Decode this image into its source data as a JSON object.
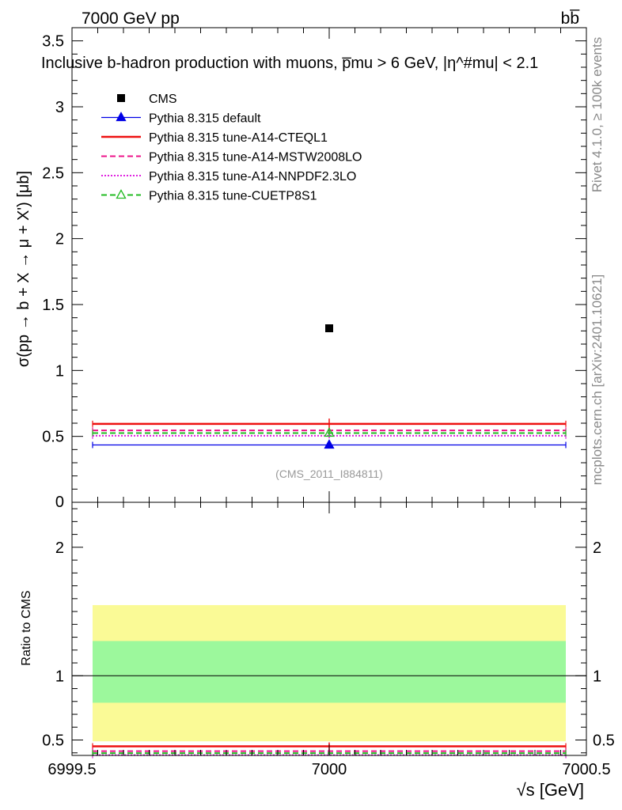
{
  "chart_data": {
    "type": "scatter",
    "header_left": "7000 GeV pp",
    "header_right": "bb̅",
    "title": "Inclusive b-hadron production with muons, p̅mu > 6 GeV, |η^#mu| < 2.1",
    "ylabel": "σ(pp → b + X → μ + X') [μb]",
    "xlabel": "√s [GeV]",
    "ratio_ylabel": "Ratio to CMS",
    "analysis_tag": "(CMS_2011_I884811)",
    "side_text_top": "Rivet 4.1.0, ≥ 100k events",
    "side_text_bottom": "mcplots.cern.ch [arXiv:2401.10621]",
    "xlim": [
      6999.5,
      7000.5
    ],
    "xticks": [
      6999.5,
      7000,
      7000.5
    ],
    "xtick_labels": [
      "6999.5",
      "7000",
      "7000.5"
    ],
    "ylim": [
      0,
      3.6
    ],
    "yticks": [
      0.5,
      1,
      1.5,
      2,
      2.5,
      3,
      3.5
    ],
    "ytick_labels": [
      "0.5",
      "1",
      "1.5",
      "2",
      "2.5",
      "3",
      "3.5"
    ],
    "ratio_ylim": [
      0.38,
      2.35
    ],
    "ratio_yticks": [
      0.5,
      1,
      2
    ],
    "ratio_ytick_labels": [
      "0.5",
      "1",
      "2"
    ],
    "data": {
      "name": "CMS",
      "x": 7000,
      "y": 1.32,
      "color": "#000000"
    },
    "ratio_bands": {
      "inner": [
        0.79,
        1.27
      ],
      "outer": [
        0.49,
        1.55
      ],
      "inner_color": "#9cf89c",
      "outer_color": "#fafa96"
    },
    "series": [
      {
        "name": "Pythia 8.315 default",
        "y": 0.435,
        "err": 0.01,
        "color": "#0000e6",
        "style": "solid",
        "marker": "triangle-filled"
      },
      {
        "name": "Pythia 8.315 tune-A14-CTEQL1",
        "y": 0.595,
        "err": 0.04,
        "color": "#ee1111",
        "style": "solid",
        "marker": "none"
      },
      {
        "name": "Pythia 8.315 tune-A14-MSTW2008LO",
        "y": 0.545,
        "err": 0.02,
        "color": "#ee1188",
        "style": "dashed",
        "marker": "none"
      },
      {
        "name": "Pythia 8.315 tune-A14-NNPDF2.3LO",
        "y": 0.505,
        "err": 0.02,
        "color": "#e020e0",
        "style": "dotted",
        "marker": "none"
      },
      {
        "name": "Pythia 8.315 tune-CUETP8S1",
        "y": 0.525,
        "err": 0.02,
        "color": "#22bb22",
        "style": "dashed",
        "marker": "triangle-open"
      }
    ]
  }
}
